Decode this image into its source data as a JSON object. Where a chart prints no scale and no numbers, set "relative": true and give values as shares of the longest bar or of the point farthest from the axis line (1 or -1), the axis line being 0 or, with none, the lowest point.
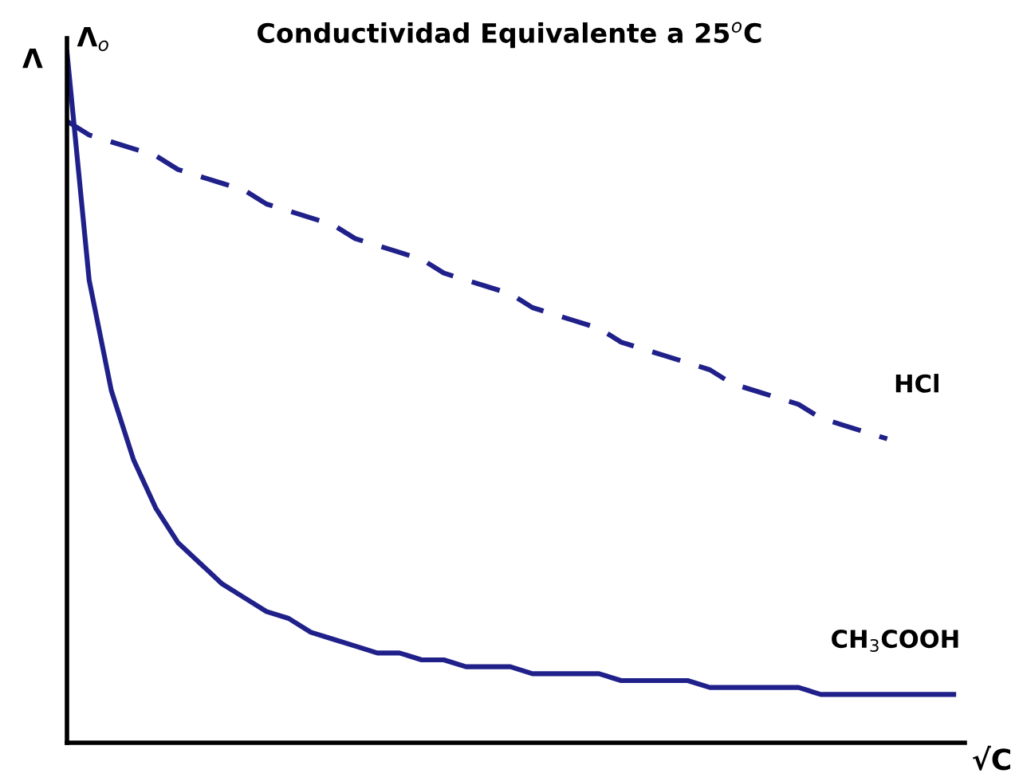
{
  "chart_data": {
    "type": "line",
    "relative": true,
    "title": "Conductividad Equivalente a 25$^{o}$C",
    "xlabel": "√C",
    "ylabel": "Λ",
    "annotations": [
      "Λ$_{o}$"
    ],
    "legend": false,
    "categories": [
      null,
      null,
      null,
      null,
      null,
      null,
      null,
      null,
      null,
      null,
      null,
      null,
      null,
      null,
      null,
      null,
      null,
      null,
      null,
      null,
      null,
      null,
      null,
      null,
      null,
      null,
      null,
      null,
      null,
      null,
      null,
      null,
      null,
      null,
      null,
      null,
      null,
      null,
      null,
      null,
      null
    ],
    "series": [
      {
        "name": "HCl",
        "color": "#20208a",
        "line_style": "dashed",
        "values": [
          0.9,
          0.88,
          0.87,
          0.86,
          0.85,
          0.83,
          0.82,
          0.81,
          0.8,
          0.78,
          0.77,
          0.76,
          0.75,
          0.73,
          0.72,
          0.71,
          0.7,
          0.68,
          0.67,
          0.66,
          0.65,
          0.63,
          0.62,
          0.61,
          0.6,
          0.58,
          0.57,
          0.56,
          0.55,
          0.54,
          0.52,
          0.51,
          0.5,
          0.49,
          0.47,
          0.46,
          0.45,
          0.44,
          null,
          null,
          null
        ]
      },
      {
        "name": "CH$_{3}$COOH",
        "color": "#20208a",
        "line_style": "solid",
        "values": [
          1.0,
          0.67,
          0.51,
          0.41,
          0.34,
          0.29,
          0.26,
          0.23,
          0.21,
          0.19,
          0.18,
          0.16,
          0.15,
          0.14,
          0.13,
          0.13,
          0.12,
          0.12,
          0.11,
          0.11,
          0.11,
          0.1,
          0.1,
          0.1,
          0.1,
          0.09,
          0.09,
          0.09,
          0.09,
          0.08,
          0.08,
          0.08,
          0.08,
          0.08,
          0.07,
          0.07,
          0.07,
          0.07,
          0.07,
          0.07,
          0.07
        ]
      }
    ]
  }
}
